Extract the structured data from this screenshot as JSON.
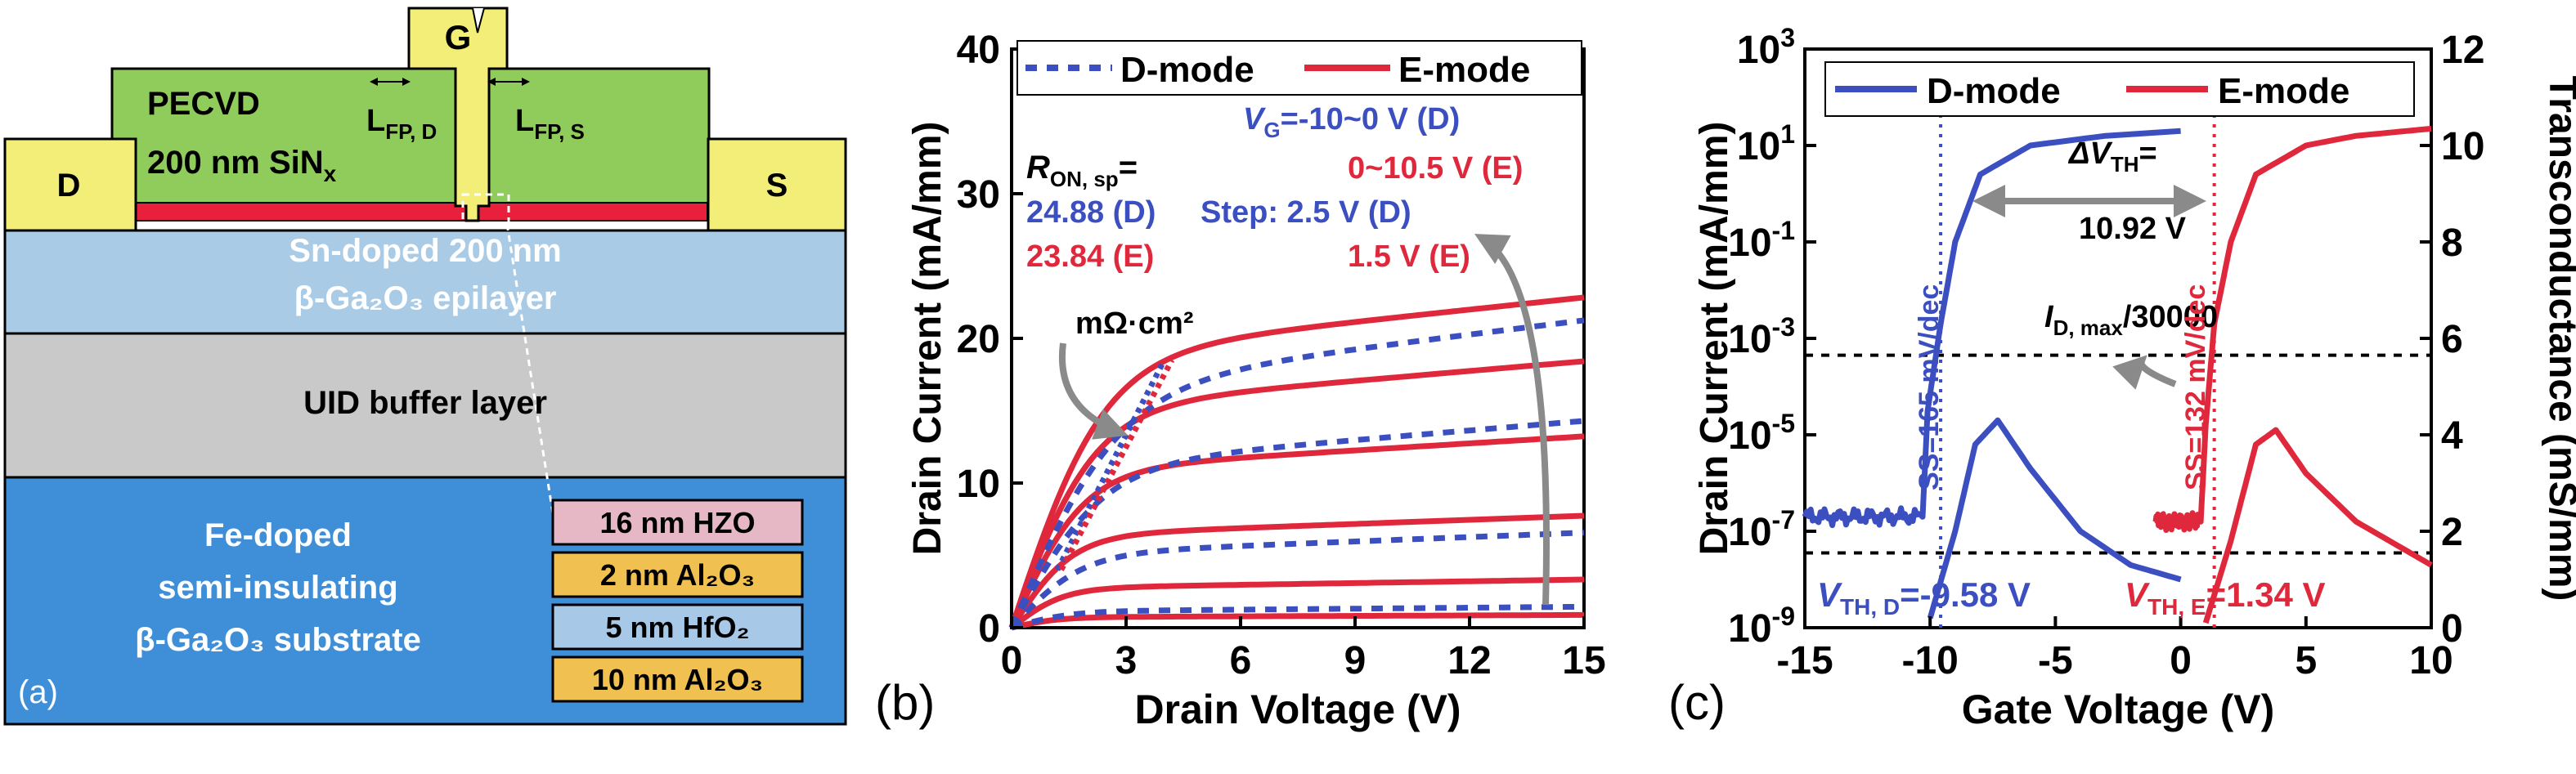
{
  "panel_a": {
    "label": "(a)",
    "gate": "G",
    "drain": "D",
    "source": "S",
    "passivation_line1": "PECVD",
    "passivation_line2_main": "200 nm SiN",
    "passivation_line2_sub": "x",
    "lfp_d_main": "L",
    "lfp_d_sub": "FP, D",
    "lfp_s_main": "L",
    "lfp_s_sub": "FP, S",
    "epilayer_line1": "Sn-doped 200 nm",
    "epilayer_line2": "β-Ga₂O₃ epilayer",
    "buffer": "UID buffer layer",
    "substrate_line1": "Fe-doped",
    "substrate_line2": "semi-insulating",
    "substrate_line3": "β-Ga₂O₃ substrate",
    "stack": [
      {
        "label": "16 nm HZO",
        "color": "#e6b8c6"
      },
      {
        "label": "2 nm Al₂O₃",
        "color": "#f0c050"
      },
      {
        "label": "5 nm HfO₂",
        "color": "#a8c8e8"
      },
      {
        "label": "10 nm Al₂O₃",
        "color": "#f0c050"
      }
    ],
    "colors": {
      "gate_metal": "#f2ee78",
      "passivation": "#8fcc5c",
      "dielectric": "#e8203c",
      "epilayer": "#a9cbe6",
      "buffer": "#c9c9c9",
      "substrate": "#3f8ed8"
    }
  },
  "chart_data": [
    {
      "type": "line",
      "panel_label": "(b)",
      "xlabel": "Drain Voltage (V)",
      "ylabel": "Drain Current (mA/mm)",
      "xlim": [
        0,
        15
      ],
      "ylim": [
        0,
        40
      ],
      "xticks": [
        0,
        3,
        6,
        9,
        12,
        15
      ],
      "yticks": [
        0,
        10,
        20,
        30,
        40
      ],
      "legend_position": "top",
      "legend": [
        {
          "name": "D-mode",
          "color": "#3b4fc0",
          "dash": true
        },
        {
          "name": "E-mode",
          "color": "#e0283c",
          "dash": false
        }
      ],
      "annotations": {
        "vg_line1": "V",
        "vg_line1_sub": "G",
        "vg_line1_rest": "=-10~0 V (D)",
        "vg_line2": "0~10.5 V (E)",
        "step_line1": "Step: 2.5 V (D)",
        "step_line2": "1.5 V (E)",
        "ron_label": "R",
        "ron_sub": "ON, sp",
        "ron_eq": "=",
        "ron_d": "24.88 (D)",
        "ron_e": "23.84 (E)",
        "ron_unit": "mΩ·cm²"
      },
      "d_mode_saturation": [
        22.0,
        14.8,
        6.8,
        1.5
      ],
      "e_mode_saturation": [
        23.3,
        18.8,
        13.5,
        7.9,
        3.4,
        0.9
      ],
      "d_mode_knee": 5.0,
      "e_mode_knee": 4.2
    },
    {
      "type": "line",
      "panel_label": "(c)",
      "xlabel": "Gate Voltage (V)",
      "ylabel_left": "Drain Current (mA/mm)",
      "ylabel_right": "Transconductance (mS/mm)",
      "xlim": [
        -15,
        10
      ],
      "ylim_left_log": [
        -9,
        3
      ],
      "ylim_right": [
        0,
        12
      ],
      "xticks": [
        -15,
        -10,
        -5,
        0,
        5,
        10
      ],
      "yticks_left_exp": [
        3,
        1,
        -1,
        -3,
        -5,
        -7,
        -9
      ],
      "yticks_right": [
        0,
        2,
        4,
        6,
        8,
        10,
        12
      ],
      "legend_position": "top",
      "legend": [
        {
          "name": "D-mode",
          "color": "#3b4fc0"
        },
        {
          "name": "E-mode",
          "color": "#e0283c"
        }
      ],
      "id_d": [
        {
          "x": -15,
          "y": -6.7
        },
        {
          "x": -10.3,
          "y": -6.7
        },
        {
          "x": -10.1,
          "y": -4.5
        },
        {
          "x": -9.58,
          "y": -2.7
        },
        {
          "x": -9.0,
          "y": -1.0
        },
        {
          "x": -8.0,
          "y": 0.4
        },
        {
          "x": -6.0,
          "y": 1.0
        },
        {
          "x": -3.0,
          "y": 1.2
        },
        {
          "x": 0,
          "y": 1.3
        }
      ],
      "gm_d": [
        {
          "x": -10,
          "y": 0.2
        },
        {
          "x": -9.0,
          "y": 2.0
        },
        {
          "x": -8.2,
          "y": 3.8
        },
        {
          "x": -7.3,
          "y": 4.3
        },
        {
          "x": -6.0,
          "y": 3.3
        },
        {
          "x": -4.0,
          "y": 2.0
        },
        {
          "x": -2.0,
          "y": 1.3
        },
        {
          "x": 0,
          "y": 1.0
        }
      ],
      "id_e": [
        {
          "x": -1.0,
          "y": -6.8
        },
        {
          "x": 0.8,
          "y": -6.8
        },
        {
          "x": 1.0,
          "y": -4.8
        },
        {
          "x": 1.34,
          "y": -2.7
        },
        {
          "x": 2.0,
          "y": -1.0
        },
        {
          "x": 3.0,
          "y": 0.4
        },
        {
          "x": 5.0,
          "y": 1.0
        },
        {
          "x": 7.0,
          "y": 1.2
        },
        {
          "x": 10,
          "y": 1.35
        }
      ],
      "gm_e": [
        {
          "x": 1.0,
          "y": 0.1
        },
        {
          "x": 2.0,
          "y": 1.8
        },
        {
          "x": 3.0,
          "y": 3.8
        },
        {
          "x": 3.8,
          "y": 4.1
        },
        {
          "x": 5.0,
          "y": 3.2
        },
        {
          "x": 7.0,
          "y": 2.2
        },
        {
          "x": 10,
          "y": 1.3
        }
      ],
      "annotations": {
        "delta_vth_line1": "ΔV",
        "delta_vth_sub": "TH",
        "delta_vth_eq": "=",
        "delta_vth_line2": "10.92 V",
        "id_max_main": "I",
        "id_max_sub": "D, max",
        "id_max_rest": "/30000",
        "ss_d": "SS=165 mV/dec",
        "ss_e": "SS=132 mV/dec",
        "vth_d_main": "V",
        "vth_d_sub": "TH, D",
        "vth_d_rest": "=-9.58 V",
        "vth_e_main": "V",
        "vth_e_sub": "TH, E",
        "vth_e_rest": "=1.34 V"
      },
      "vth_d": -9.58,
      "vth_e": 1.34,
      "ref_current_exp": -3.35,
      "floor_current_exp": -7.45
    }
  ]
}
